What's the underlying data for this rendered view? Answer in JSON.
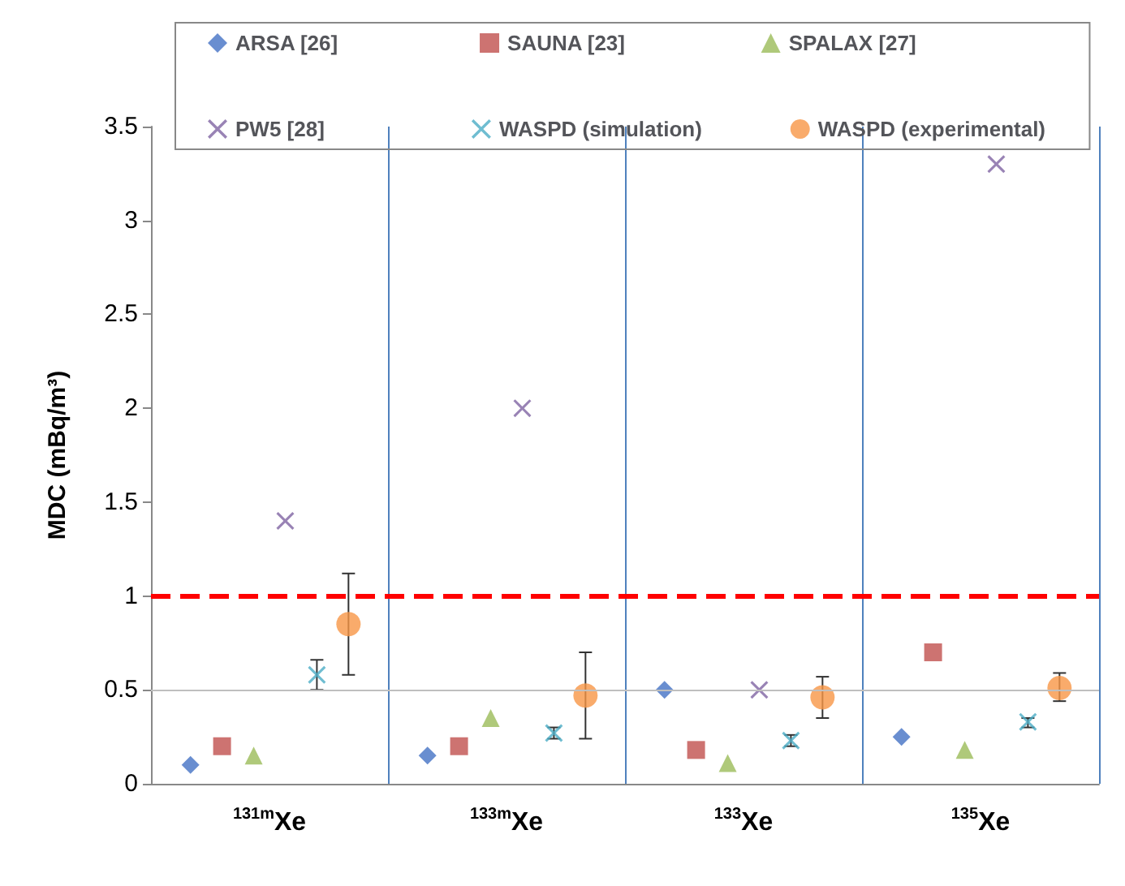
{
  "chart_data": {
    "type": "scatter",
    "ylabel": "MDC (mBq/m³)",
    "categories": [
      "$^{131m}$Xe",
      "$^{133m}$Xe",
      "$^{133}$Xe",
      "$^{135}$Xe"
    ],
    "ylim": [
      0,
      3.5
    ],
    "yticks": [
      0,
      0.5,
      1,
      1.5,
      2,
      2.5,
      3,
      3.5
    ],
    "grid": "x",
    "legend": "top",
    "series": [
      {
        "name": "ARSA [26]",
        "color": "#4472c4",
        "marker": "diamond",
        "values": [
          0.1,
          0.15,
          0.5,
          0.25
        ]
      },
      {
        "name": "SAUNA [23]",
        "color": "#c0504d",
        "marker": "square",
        "values": [
          0.2,
          0.2,
          0.18,
          0.7
        ]
      },
      {
        "name": "SPALAX [27]",
        "color": "#9bbb59",
        "marker": "triangle",
        "values": [
          0.15,
          0.35,
          0.11,
          0.18
        ]
      },
      {
        "name": "PW5 [28]",
        "color": "#8064a2",
        "marker": "cross",
        "values": [
          1.4,
          2.0,
          0.5,
          3.3
        ]
      },
      {
        "name": "WASPD (simulation)",
        "color": "#4bacc6",
        "marker": "cross",
        "values": [
          0.58,
          0.27,
          0.23,
          0.33
        ],
        "errors": [
          [
            0.5,
            0.66
          ],
          [
            0.24,
            0.3
          ],
          [
            0.2,
            0.26
          ],
          [
            0.3,
            0.35
          ]
        ]
      },
      {
        "name": "WASPD (experimental)",
        "color": "#f79646",
        "marker": "circle",
        "values": [
          0.85,
          0.47,
          0.46,
          0.51
        ],
        "errors": [
          [
            0.58,
            1.12
          ],
          [
            0.24,
            0.7
          ],
          [
            0.35,
            0.57
          ],
          [
            0.44,
            0.59
          ]
        ]
      }
    ],
    "ref_lines": [
      {
        "axis": "y",
        "value": 1,
        "color": "#ff0000",
        "line_style": "dashed"
      },
      {
        "axis": "y",
        "value": 0.5,
        "color": "#bfbfbf",
        "line_style": "solid"
      }
    ]
  }
}
